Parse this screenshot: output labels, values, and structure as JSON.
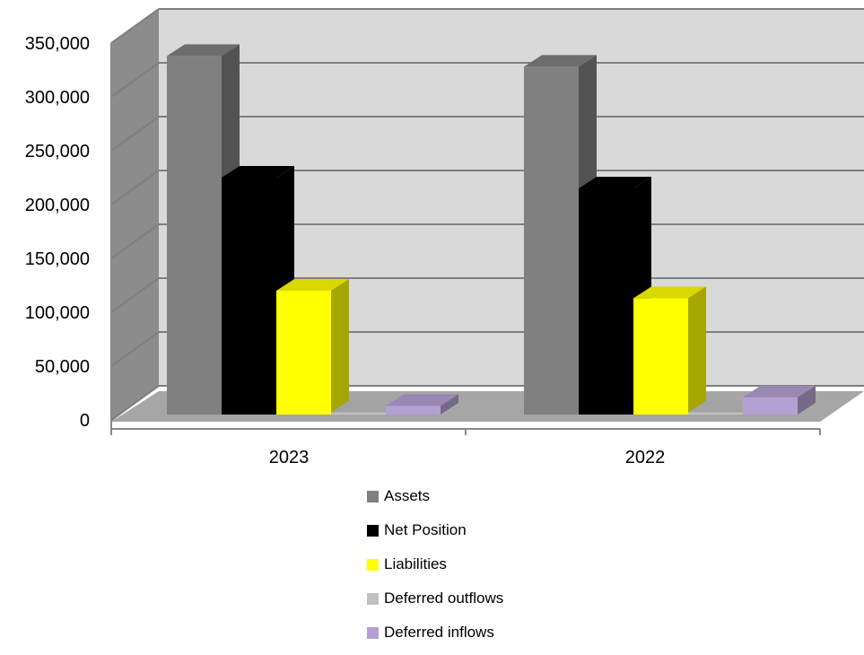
{
  "chart_data": {
    "type": "bar",
    "categories": [
      "2023",
      "2022"
    ],
    "series": [
      {
        "name": "Assets",
        "values": [
          333000,
          323000
        ],
        "color": "#808080"
      },
      {
        "name": "Net Position",
        "values": [
          220000,
          210000
        ],
        "color": "#000000"
      },
      {
        "name": "Liabilities",
        "values": [
          115000,
          108000
        ],
        "color": "#ffff00"
      },
      {
        "name": "Deferred outflows",
        "values": [
          2000,
          2000
        ],
        "color": "#c0c0c0"
      },
      {
        "name": "Deferred inflows",
        "values": [
          8000,
          16000
        ],
        "color": "#b4a0d2"
      }
    ],
    "y_ticks": [
      "0",
      "50,000",
      "100,000",
      "150,000",
      "200,000",
      "250,000",
      "300,000",
      "350,000"
    ],
    "ylim": [
      0,
      350000
    ],
    "grid": true,
    "legend_position": "bottom",
    "style": "3d-clustered-column"
  }
}
